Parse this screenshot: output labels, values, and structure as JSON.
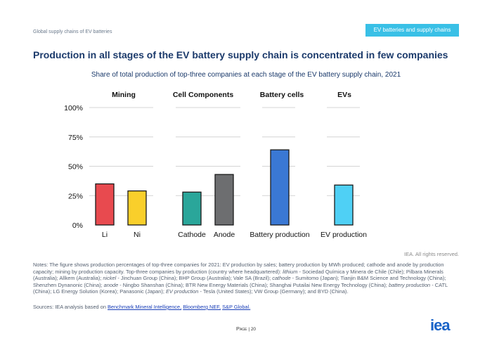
{
  "header": {
    "left_text": "Global supply chains of EV batteries",
    "tag": "EV batteries and supply chains"
  },
  "title": "Production in all stages of the EV battery supply chain is concentrated in few companies",
  "subtitle": "Share of total production of top-three companies at each stage of the EV battery supply chain, 2021",
  "chart_data": {
    "type": "bar",
    "panels": [
      {
        "title": "Mining",
        "categories": [
          "Li",
          "Ni"
        ],
        "values": [
          35,
          29
        ],
        "colors": [
          "#e84a4f",
          "#f9cf2b"
        ]
      },
      {
        "title": "Cell Components",
        "categories": [
          "Cathode",
          "Anode"
        ],
        "values": [
          28,
          43
        ],
        "colors": [
          "#2aa69a",
          "#6d6e70"
        ]
      },
      {
        "title": "Battery cells",
        "categories": [
          "Battery production"
        ],
        "values": [
          64
        ],
        "colors": [
          "#3a78d4"
        ]
      },
      {
        "title": "EVs",
        "categories": [
          "EV production"
        ],
        "values": [
          34
        ],
        "colors": [
          "#4fd0f5"
        ]
      }
    ],
    "y_ticks": [
      "0%",
      "25%",
      "50%",
      "75%",
      "100%"
    ],
    "y_tick_values": [
      0,
      25,
      50,
      75,
      100
    ],
    "ylim": [
      0,
      100
    ],
    "grid": true
  },
  "rights": "IEA. All rights reserved.",
  "notes": {
    "parts": [
      {
        "t": "Notes: The figure shows production percentages of top-three companies for 2021: EV production by sales; battery production by MWh produced; cathode and anode by production capacity; mining by production capacity. Top-three companies by production (country where headquartered): ",
        "i": false
      },
      {
        "t": "lithium",
        "i": true
      },
      {
        "t": " - Sociedad Química y Minera de Chile (Chile); Pilbara Minerals (Australia); Allkem (Australia); ",
        "i": false
      },
      {
        "t": "nickel",
        "i": true
      },
      {
        "t": " - Jinchuan Group (China); BHP Group (Australia); Vale SA (Brazil); ",
        "i": false
      },
      {
        "t": "cathode",
        "i": true
      },
      {
        "t": " - Sumitomo (Japan); Tianjin B&M Science and Technology (China); Shenzhen Dynanonic (China); ",
        "i": false
      },
      {
        "t": "anode",
        "i": true
      },
      {
        "t": " - Ningbo Shanshan (China); BTR New Energy Materials (China); Shanghai Putailai New Energy Technology (China); ",
        "i": false
      },
      {
        "t": "battery production",
        "i": true
      },
      {
        "t": " - CATL (China); LG Energy Solution (Korea); Panasonic (Japan); ",
        "i": false
      },
      {
        "t": "EV production",
        "i": true
      },
      {
        "t": " - Tesla (United States); VW Group (Germany); and BYD (China).",
        "i": false
      }
    ]
  },
  "sources": {
    "prefix": "Sources: IEA analysis based on ",
    "links": [
      "Benchmark Mineral Intelligence,",
      "Bloomberg NEF,",
      "S&P Global."
    ]
  },
  "page": {
    "label": "Page",
    "number": "20"
  },
  "logo": {
    "text": "iea",
    "color": "#1a64c8"
  }
}
